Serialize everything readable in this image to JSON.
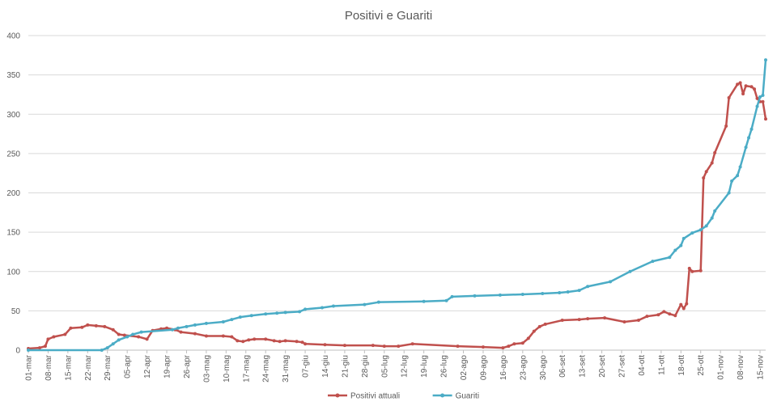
{
  "chart_data": {
    "type": "line",
    "title": "Positivi e Guariti",
    "xlabel": "",
    "ylabel": "",
    "ylim": [
      0,
      400
    ],
    "yticks": [
      0,
      50,
      100,
      150,
      200,
      250,
      300,
      350,
      400
    ],
    "grid": true,
    "legend_position": "bottom",
    "x_start": "01-mar",
    "x_end": "17-nov",
    "x_tick_labels": [
      "01-mar",
      "08-mar",
      "15-mar",
      "22-mar",
      "29-mar",
      "05-apr",
      "12-apr",
      "19-apr",
      "26-apr",
      "03-mag",
      "10-mag",
      "17-mag",
      "24-mag",
      "31-mag",
      "07-giu",
      "14-giu",
      "21-giu",
      "28-giu",
      "05-lug",
      "12-lug",
      "19-lug",
      "26-lug",
      "02-ago",
      "09-ago",
      "16-ago",
      "23-ago",
      "30-ago",
      "06-set",
      "13-set",
      "20-set",
      "27-set",
      "04-ott",
      "11-ott",
      "18-ott",
      "25-ott",
      "01-nov",
      "08-nov",
      "15-nov"
    ],
    "series": [
      {
        "name": "Positivi attuali",
        "color": "#c0504d",
        "points": [
          [
            "01-mar",
            2
          ],
          [
            "05-mar",
            3
          ],
          [
            "07-mar",
            5
          ],
          [
            "08-mar",
            14
          ],
          [
            "10-mar",
            17
          ],
          [
            "14-mar",
            20
          ],
          [
            "16-mar",
            28
          ],
          [
            "20-mar",
            29
          ],
          [
            "22-mar",
            32
          ],
          [
            "25-mar",
            31
          ],
          [
            "28-mar",
            30
          ],
          [
            "31-mar",
            26
          ],
          [
            "02-apr",
            20
          ],
          [
            "04-apr",
            19
          ],
          [
            "09-apr",
            17
          ],
          [
            "12-apr",
            14
          ],
          [
            "14-apr",
            25
          ],
          [
            "17-apr",
            27
          ],
          [
            "19-apr",
            28
          ],
          [
            "22-apr",
            26
          ],
          [
            "24-apr",
            23
          ],
          [
            "29-apr",
            21
          ],
          [
            "03-mag",
            18
          ],
          [
            "09-mag",
            18
          ],
          [
            "12-mag",
            17
          ],
          [
            "14-mag",
            12
          ],
          [
            "16-mag",
            11
          ],
          [
            "18-mag",
            13
          ],
          [
            "20-mag",
            14
          ],
          [
            "24-mag",
            14
          ],
          [
            "27-mag",
            12
          ],
          [
            "29-mag",
            11
          ],
          [
            "31-mag",
            12
          ],
          [
            "04-giu",
            11
          ],
          [
            "06-giu",
            10
          ],
          [
            "07-giu",
            8
          ],
          [
            "14-giu",
            7
          ],
          [
            "21-giu",
            6
          ],
          [
            "01-lug",
            6
          ],
          [
            "05-lug",
            5
          ],
          [
            "10-lug",
            5
          ],
          [
            "15-lug",
            8
          ],
          [
            "31-lug",
            5
          ],
          [
            "09-ago",
            4
          ],
          [
            "16-ago",
            3
          ],
          [
            "18-ago",
            5
          ],
          [
            "20-ago",
            8
          ],
          [
            "23-ago",
            9
          ],
          [
            "25-ago",
            15
          ],
          [
            "27-ago",
            24
          ],
          [
            "29-ago",
            30
          ],
          [
            "31-ago",
            33
          ],
          [
            "06-set",
            38
          ],
          [
            "12-set",
            39
          ],
          [
            "15-set",
            40
          ],
          [
            "21-set",
            41
          ],
          [
            "28-set",
            36
          ],
          [
            "03-ott",
            38
          ],
          [
            "06-ott",
            43
          ],
          [
            "10-ott",
            45
          ],
          [
            "12-ott",
            49
          ],
          [
            "14-ott",
            46
          ],
          [
            "16-ott",
            44
          ],
          [
            "18-ott",
            58
          ],
          [
            "19-ott",
            53
          ],
          [
            "20-ott",
            59
          ],
          [
            "21-ott",
            104
          ],
          [
            "22-ott",
            100
          ],
          [
            "25-ott",
            101
          ],
          [
            "26-ott",
            219
          ],
          [
            "27-ott",
            227
          ],
          [
            "29-ott",
            238
          ],
          [
            "30-ott",
            251
          ],
          [
            "03-nov",
            285
          ],
          [
            "04-nov",
            321
          ],
          [
            "07-nov",
            338
          ],
          [
            "08-nov",
            340
          ],
          [
            "09-nov",
            326
          ],
          [
            "10-nov",
            336
          ],
          [
            "12-nov",
            335
          ],
          [
            "13-nov",
            332
          ],
          [
            "14-nov",
            320
          ],
          [
            "15-nov",
            316
          ],
          [
            "16-nov",
            316
          ],
          [
            "17-nov",
            294
          ]
        ]
      },
      {
        "name": "Guariti",
        "color": "#4bacc6",
        "points": [
          [
            "01-mar",
            0
          ],
          [
            "27-mar",
            0
          ],
          [
            "29-mar",
            3
          ],
          [
            "31-mar",
            8
          ],
          [
            "02-apr",
            13
          ],
          [
            "05-apr",
            17
          ],
          [
            "07-apr",
            20
          ],
          [
            "10-apr",
            23
          ],
          [
            "21-apr",
            26
          ],
          [
            "23-apr",
            28
          ],
          [
            "26-apr",
            30
          ],
          [
            "29-apr",
            32
          ],
          [
            "03-mag",
            34
          ],
          [
            "09-mag",
            36
          ],
          [
            "12-mag",
            39
          ],
          [
            "15-mag",
            42
          ],
          [
            "19-mag",
            44
          ],
          [
            "24-mag",
            46
          ],
          [
            "28-mag",
            47
          ],
          [
            "31-mag",
            48
          ],
          [
            "05-giu",
            49
          ],
          [
            "07-giu",
            52
          ],
          [
            "13-giu",
            54
          ],
          [
            "17-giu",
            56
          ],
          [
            "28-giu",
            58
          ],
          [
            "03-lug",
            61
          ],
          [
            "19-lug",
            62
          ],
          [
            "27-lug",
            63
          ],
          [
            "29-lug",
            68
          ],
          [
            "06-ago",
            69
          ],
          [
            "15-ago",
            70
          ],
          [
            "23-ago",
            71
          ],
          [
            "30-ago",
            72
          ],
          [
            "05-set",
            73
          ],
          [
            "08-set",
            74
          ],
          [
            "12-set",
            76
          ],
          [
            "15-set",
            81
          ],
          [
            "23-set",
            87
          ],
          [
            "30-set",
            100
          ],
          [
            "08-ott",
            113
          ],
          [
            "14-ott",
            118
          ],
          [
            "16-ott",
            127
          ],
          [
            "18-ott",
            133
          ],
          [
            "19-ott",
            142
          ],
          [
            "22-ott",
            149
          ],
          [
            "25-ott",
            153
          ],
          [
            "27-ott",
            158
          ],
          [
            "29-ott",
            168
          ],
          [
            "30-ott",
            177
          ],
          [
            "04-nov",
            200
          ],
          [
            "05-nov",
            215
          ],
          [
            "07-nov",
            222
          ],
          [
            "08-nov",
            233
          ],
          [
            "10-nov",
            258
          ],
          [
            "11-nov",
            270
          ],
          [
            "12-nov",
            281
          ],
          [
            "14-nov",
            310
          ],
          [
            "15-nov",
            322
          ],
          [
            "16-nov",
            324
          ],
          [
            "17-nov",
            369
          ]
        ]
      }
    ]
  }
}
